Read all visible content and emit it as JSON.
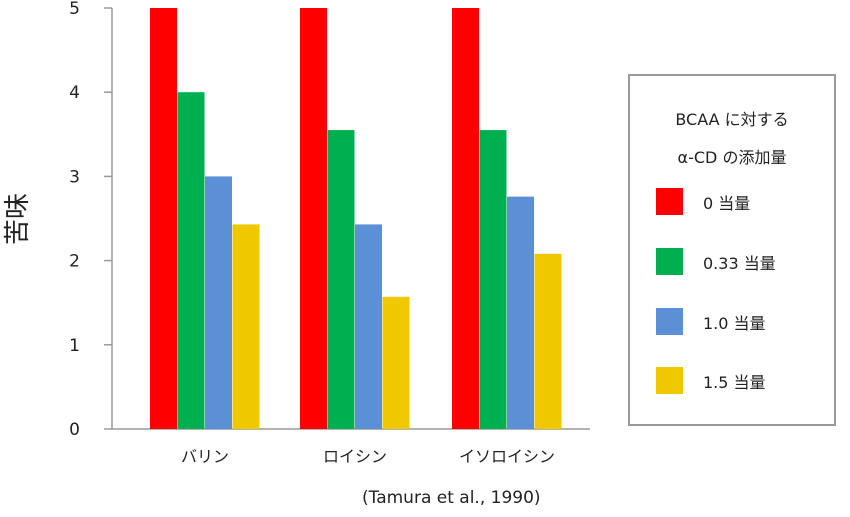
{
  "chart_data": {
    "type": "bar",
    "ylabel": "苦味",
    "ylim": [
      0,
      5
    ],
    "yticks": [
      "0",
      "1",
      "2",
      "3",
      "4",
      "5"
    ],
    "categories": [
      "バリン",
      "ロイシン",
      "イソロイシン"
    ],
    "series": [
      {
        "name": "0 当量",
        "color": "#ff0000",
        "values": [
          5.0,
          5.0,
          5.0
        ]
      },
      {
        "name": "0.33 当量",
        "color": "#00b050",
        "values": [
          4.0,
          3.55,
          3.55
        ]
      },
      {
        "name": "1.0 当量",
        "color": "#5b8fd6",
        "values": [
          3.0,
          2.43,
          2.76
        ]
      },
      {
        "name": "1.5 当量",
        "color": "#f0c800",
        "values": [
          2.43,
          1.57,
          2.08
        ]
      }
    ],
    "legend": {
      "title_line1": "BCAA に対する",
      "title_line2": "α-CD の添加量",
      "placement": "right"
    },
    "grid": false
  },
  "citation": "(Tamura et al., 1990)"
}
